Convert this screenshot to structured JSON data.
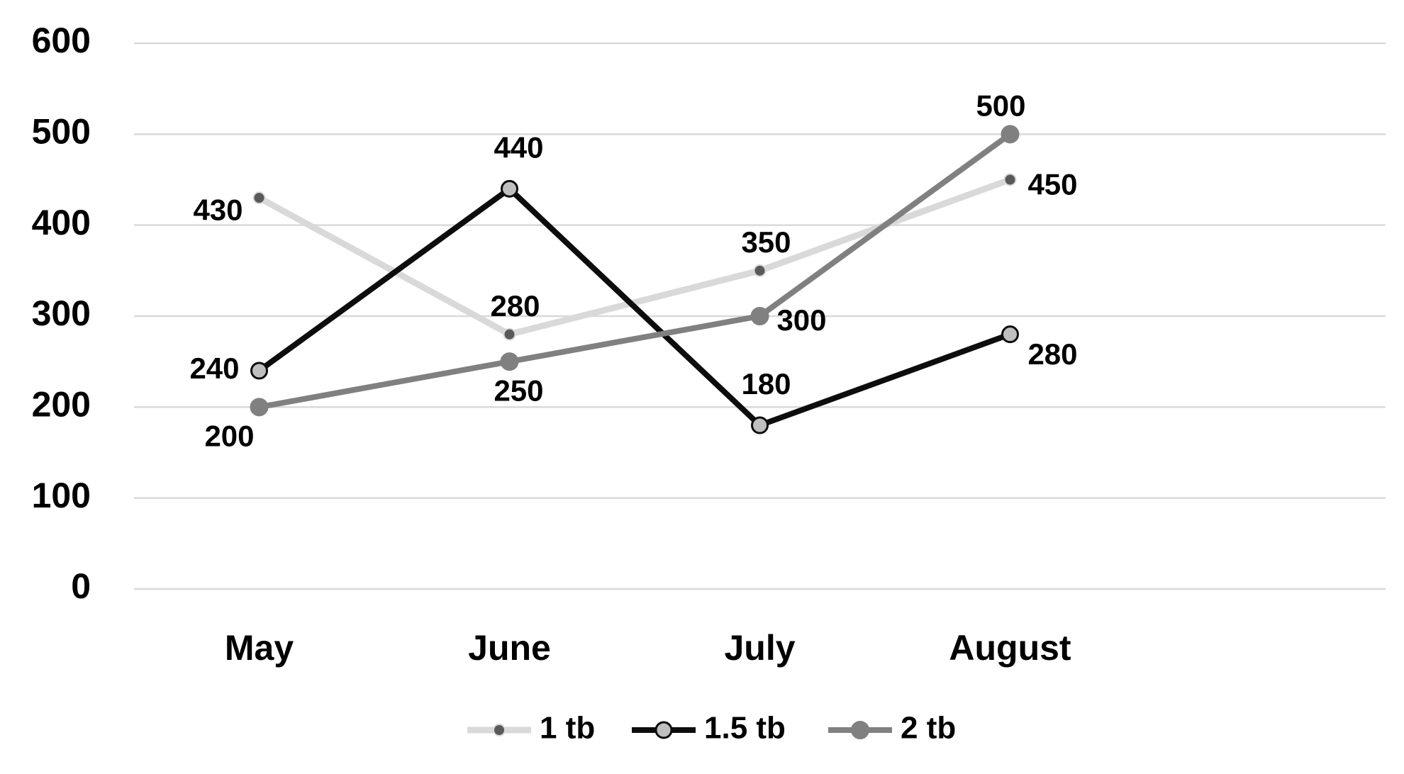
{
  "chart_data": {
    "type": "line",
    "categories": [
      "May",
      "June",
      "July",
      "August",
      null
    ],
    "series": [
      {
        "name": "1 tb",
        "color": "#d9d9d9",
        "marker_color": "#595959",
        "values": [
          430,
          280,
          350,
          450,
          null
        ]
      },
      {
        "name": "1.5 tb",
        "color": "#0d0d0d",
        "marker_color": "#bfbfbf",
        "values": [
          240,
          440,
          180,
          280,
          null
        ]
      },
      {
        "name": "2 tb",
        "color": "#808080",
        "marker_color": "#808080",
        "values": [
          200,
          250,
          300,
          500,
          null
        ]
      }
    ],
    "ylim": [
      0,
      600
    ],
    "yticks": [
      0,
      100,
      200,
      300,
      400,
      500,
      600
    ],
    "grid": true,
    "legend": "bottom",
    "data_labels": true
  }
}
